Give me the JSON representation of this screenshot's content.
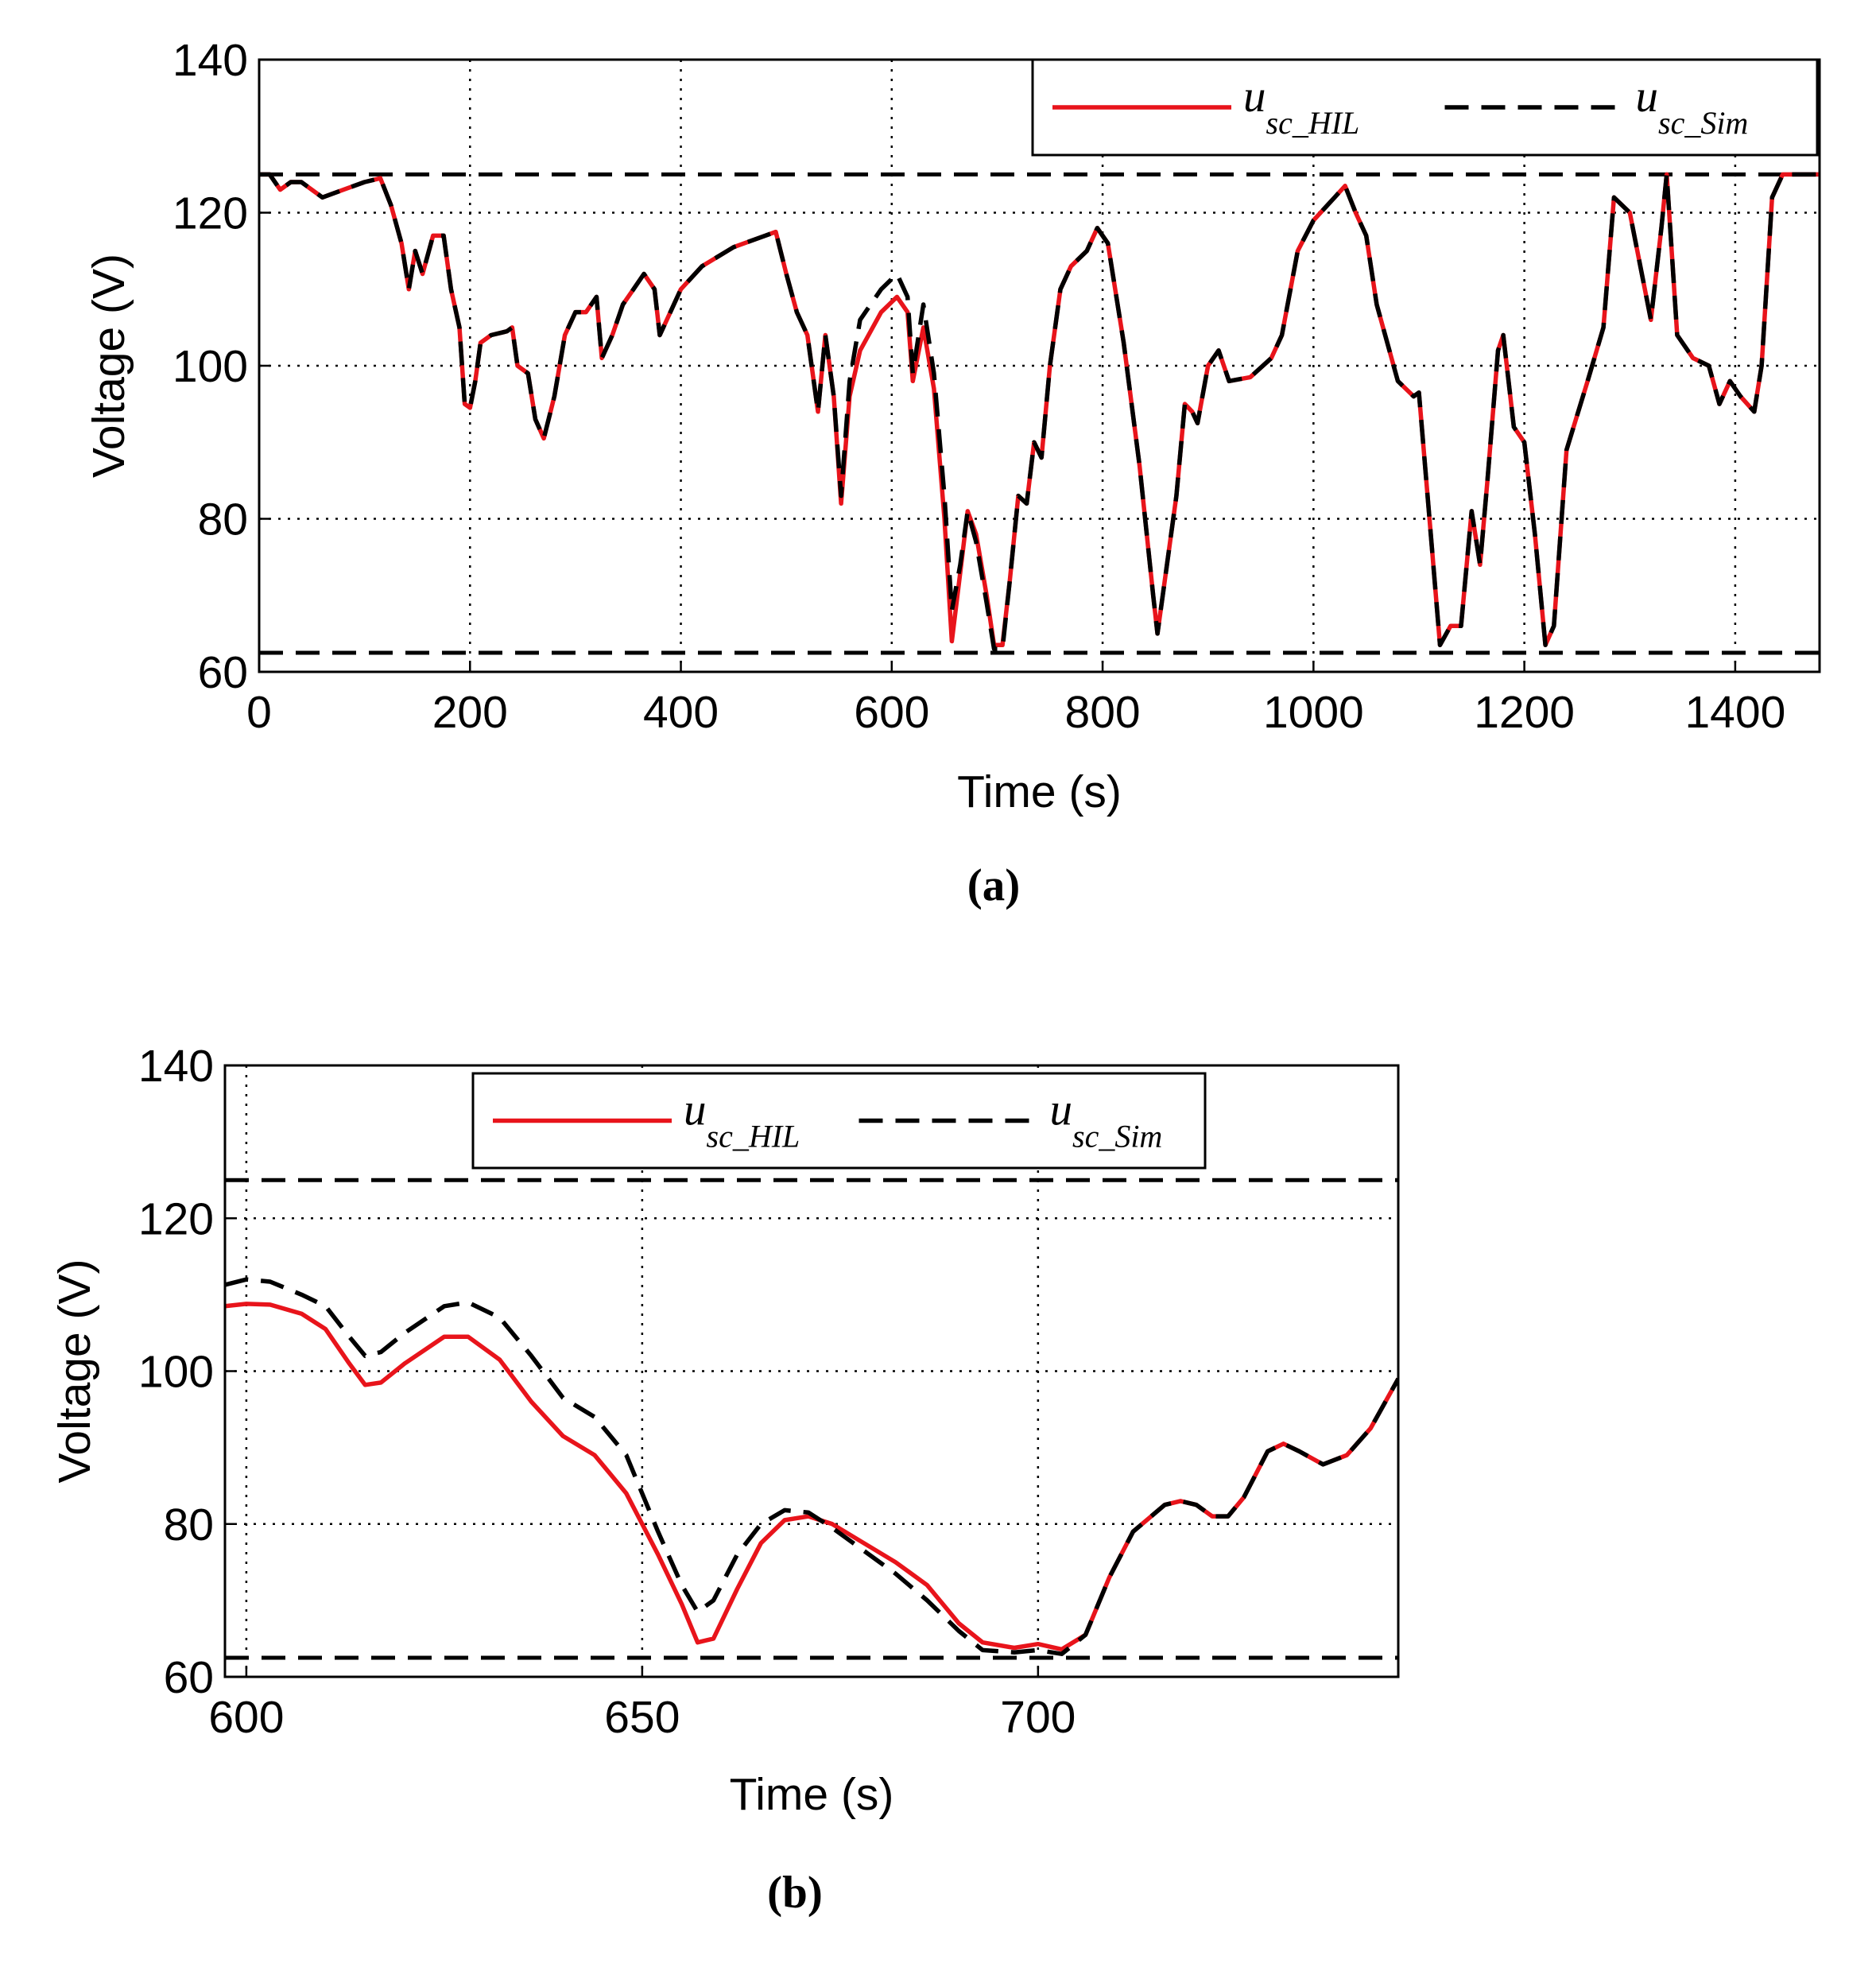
{
  "chart_data": [
    {
      "type": "line",
      "caption": "(a)",
      "x_label": "Time (s)",
      "y_label": "Voltage (V)",
      "xlim": [
        0,
        1480
      ],
      "xticks": [
        0,
        200,
        400,
        600,
        800,
        1000,
        1200,
        1400
      ],
      "ylim": [
        60,
        140
      ],
      "yticks": [
        60,
        80,
        100,
        120,
        140
      ],
      "grid": true,
      "hlines": [
        125,
        62.5
      ],
      "x": [
        0,
        10,
        20,
        30,
        40,
        50,
        60,
        70,
        80,
        100,
        115,
        125,
        135,
        142,
        148,
        155,
        165,
        175,
        182,
        190,
        195,
        200,
        205,
        210,
        220,
        235,
        240,
        245,
        255,
        262,
        270,
        280,
        290,
        300,
        310,
        320,
        325,
        335,
        345,
        355,
        365,
        375,
        380,
        390,
        400,
        420,
        450,
        480,
        490,
        500,
        510,
        520,
        530,
        537,
        545,
        552,
        560,
        570,
        590,
        605,
        615,
        620,
        630,
        640,
        650,
        657,
        665,
        672,
        680,
        690,
        697,
        705,
        712,
        720,
        728,
        735,
        742,
        750,
        760,
        770,
        785,
        795,
        805,
        820,
        835,
        848,
        852,
        860,
        870,
        878,
        885,
        890,
        900,
        910,
        920,
        940,
        960,
        970,
        985,
        1000,
        1020,
        1030,
        1040,
        1050,
        1060,
        1080,
        1095,
        1100,
        1110,
        1120,
        1130,
        1140,
        1150,
        1158,
        1165,
        1175,
        1180,
        1190,
        1200,
        1210,
        1220,
        1228,
        1240,
        1260,
        1275,
        1285,
        1300,
        1320,
        1330,
        1335,
        1345,
        1360,
        1375,
        1385,
        1395,
        1405,
        1418,
        1425,
        1435,
        1445,
        1480
      ],
      "series": [
        {
          "name": "u",
          "subscript": "sc_HIL",
          "color": "#e8141b",
          "dashed": false,
          "values": [
            125,
            125,
            123,
            124,
            124,
            123,
            122,
            122.5,
            123,
            124,
            124.5,
            121,
            116,
            110,
            115,
            112,
            117,
            117,
            110,
            105,
            95,
            94.5,
            98,
            103,
            104,
            104.5,
            105,
            100,
            99,
            93,
            90.5,
            96,
            104,
            107,
            107,
            109,
            101,
            104,
            108,
            110,
            112,
            110,
            104,
            107,
            110,
            113,
            115.5,
            117,
            117.5,
            112,
            107,
            104,
            94,
            104,
            96,
            82,
            96,
            102,
            107,
            109,
            107,
            98,
            105,
            97,
            80,
            64,
            73,
            81,
            78,
            70,
            63.5,
            63.5,
            72,
            83,
            82,
            90,
            88,
            100,
            110,
            113,
            115,
            118,
            116,
            103,
            87,
            70,
            65,
            73,
            83,
            95,
            94,
            92.5,
            100,
            102,
            98,
            98.5,
            101,
            104,
            115,
            119,
            122,
            123.5,
            120,
            117,
            108,
            98,
            96,
            96.5,
            80,
            63.5,
            66,
            66,
            81,
            74,
            85,
            102,
            104,
            92,
            90,
            78,
            63.5,
            66,
            89,
            98,
            105,
            122,
            120,
            106,
            118,
            125,
            104,
            101,
            100,
            95,
            98,
            96,
            94,
            100,
            122,
            125,
            125
          ]
        },
        {
          "name": "u",
          "subscript": "sc_Sim",
          "color": "#000000",
          "dashed": true,
          "values": [
            125,
            125,
            123,
            124,
            124,
            123,
            122,
            122.5,
            123,
            124,
            124.5,
            121,
            116,
            110,
            115,
            112,
            117,
            117,
            110,
            105,
            95,
            94.5,
            98,
            103,
            104,
            104.5,
            105,
            100,
            99,
            93,
            90.5,
            96,
            104,
            107,
            107,
            109,
            101,
            104,
            108,
            110,
            112,
            110,
            104,
            107,
            110,
            113,
            115.5,
            117,
            117.5,
            112,
            107,
            104,
            94,
            104,
            96,
            83,
            98,
            106,
            110,
            112,
            109,
            99,
            108,
            99,
            83,
            68,
            74,
            81,
            77,
            69,
            63,
            63,
            72,
            83,
            82,
            90,
            88,
            100,
            110,
            113,
            115,
            118,
            116,
            103,
            87,
            70,
            65,
            73,
            83,
            95,
            94,
            92.5,
            100,
            102,
            98,
            98.5,
            101,
            104,
            115,
            119,
            122,
            123.5,
            120,
            117,
            108,
            98,
            96,
            96.5,
            80,
            63.5,
            66,
            66,
            81,
            74,
            85,
            102,
            104,
            92,
            90,
            78,
            63.5,
            66,
            89,
            98,
            105,
            122,
            120,
            106,
            118,
            125,
            104,
            101,
            100,
            95,
            98,
            96,
            94,
            100,
            122,
            125,
            125
          ]
        }
      ]
    },
    {
      "type": "line",
      "caption": "(b)",
      "x_label": "Time (s)",
      "y_label": "Voltage (V)",
      "xlim": [
        597.3,
        745.5
      ],
      "xticks": [
        600,
        650,
        700
      ],
      "ylim": [
        60,
        140
      ],
      "yticks": [
        60,
        80,
        100,
        120,
        140
      ],
      "grid": true,
      "hlines": [
        125,
        62.5
      ],
      "x": [
        597.3,
        600,
        603,
        607,
        610,
        613,
        615,
        617,
        620,
        625,
        628,
        632,
        636,
        640,
        644,
        648,
        652,
        655,
        657,
        659,
        662,
        665,
        668,
        671,
        674,
        678,
        682,
        686,
        690,
        693,
        697,
        700,
        703,
        706,
        709,
        712,
        716,
        718,
        720,
        722,
        724,
        726,
        729,
        731,
        733,
        736,
        739,
        742,
        745.5
      ],
      "series": [
        {
          "name": "u",
          "subscript": "sc_HIL",
          "color": "#e8141b",
          "dashed": false,
          "values": [
            108.5,
            108.8,
            108.7,
            107.5,
            105.5,
            101,
            98.2,
            98.5,
            101,
            104.5,
            104.5,
            101.5,
            96,
            91.5,
            89,
            84,
            76,
            69.5,
            64.5,
            65,
            71.5,
            77.5,
            80.5,
            81,
            80,
            77.5,
            75,
            72,
            67,
            64.5,
            63.8,
            64.3,
            63.6,
            65.5,
            73,
            79,
            82.5,
            83,
            82.5,
            81,
            81,
            83.5,
            89.5,
            90.5,
            89.5,
            87.8,
            89,
            92.5,
            99
          ]
        },
        {
          "name": "u",
          "subscript": "sc_Sim",
          "color": "#000000",
          "dashed": true,
          "values": [
            111.3,
            112,
            111.7,
            110,
            108.5,
            104.5,
            102,
            102.5,
            105,
            108.5,
            109,
            107,
            102,
            96.5,
            94,
            89,
            79,
            72,
            68.5,
            70,
            76,
            80,
            81.8,
            81.5,
            79.5,
            76.5,
            73.5,
            70,
            66,
            63.5,
            63.2,
            63.5,
            63,
            65.5,
            73,
            79,
            82.5,
            83,
            82.5,
            81,
            81,
            83.5,
            89.5,
            90.5,
            89.5,
            87.8,
            89,
            92.5,
            99
          ]
        }
      ]
    }
  ]
}
